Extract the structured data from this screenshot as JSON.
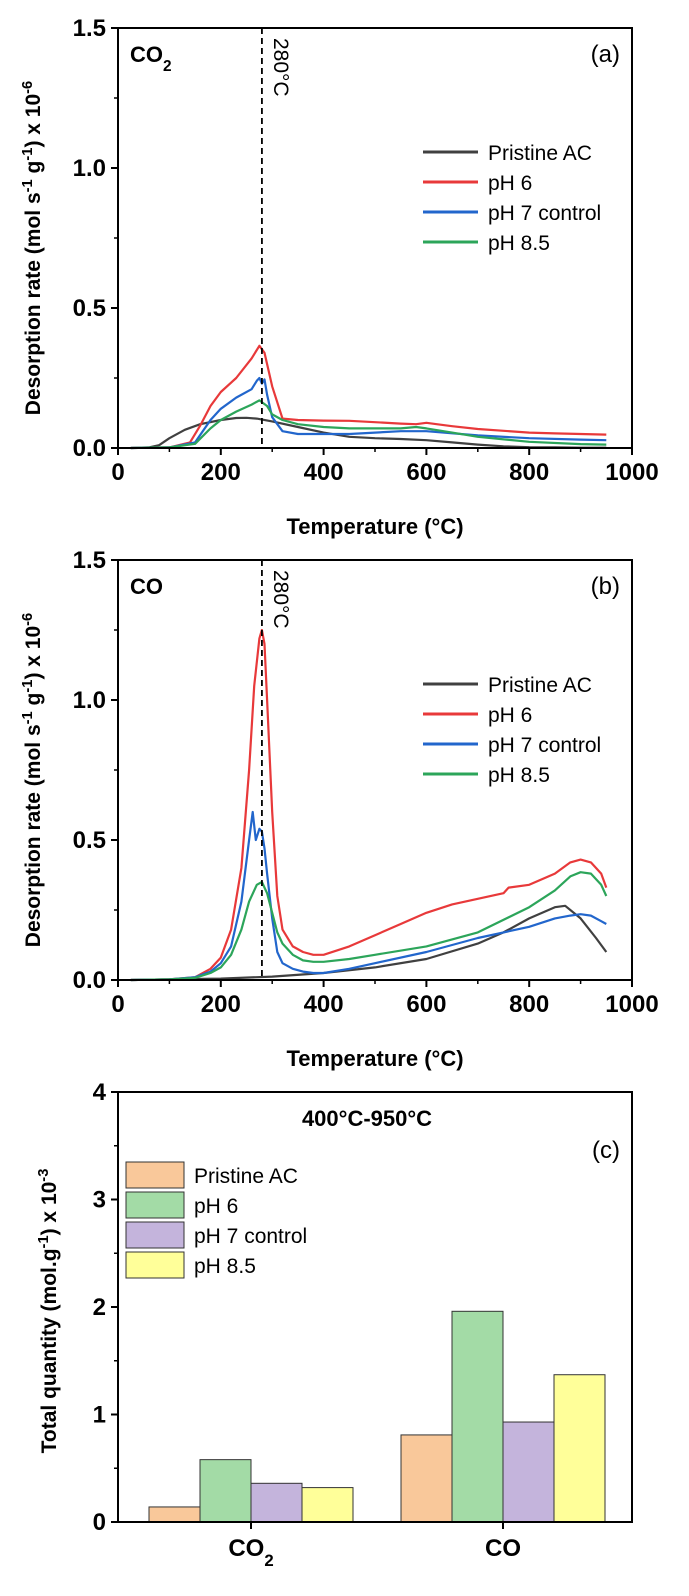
{
  "chart_data": [
    {
      "id": "a",
      "type": "line",
      "panel_label": "(a)",
      "species": "CO2",
      "ylabel": "Desorption rate (mol s-1 g-1) x 10-6",
      "xlabel": "Temperature (°C)",
      "xlim": [
        0,
        1000
      ],
      "ylim": [
        0,
        1.5
      ],
      "xticks": [
        0,
        200,
        400,
        600,
        800,
        1000
      ],
      "yticks": [
        0.0,
        0.5,
        1.0,
        1.5
      ],
      "xticklabels": [
        "0",
        "200",
        "400",
        "600",
        "800",
        "1000"
      ],
      "yticklabels": [
        "0.0",
        "0.5",
        "1.0",
        "1.5"
      ],
      "vline": {
        "x": 280,
        "label": "280°C",
        "style": "dashed"
      },
      "legend": {
        "placement": "right"
      },
      "series": [
        {
          "name": "Pristine AC",
          "color": "#404040",
          "x": [
            25,
            60,
            80,
            100,
            130,
            160,
            200,
            230,
            250,
            270,
            300,
            350,
            400,
            450,
            500,
            550,
            600,
            650,
            700,
            750,
            800,
            850,
            900,
            950
          ],
          "y": [
            0.0,
            0.002,
            0.01,
            0.035,
            0.065,
            0.085,
            0.1,
            0.107,
            0.108,
            0.105,
            0.095,
            0.075,
            0.055,
            0.04,
            0.035,
            0.032,
            0.028,
            0.02,
            0.012,
            0.006,
            0.003,
            0.002,
            0.001,
            0.001
          ]
        },
        {
          "name": "pH 6",
          "color": "#e8393a",
          "x": [
            25,
            100,
            140,
            160,
            180,
            200,
            230,
            260,
            275,
            285,
            300,
            320,
            350,
            400,
            450,
            500,
            550,
            580,
            600,
            620,
            650,
            700,
            800,
            850,
            900,
            950
          ],
          "y": [
            0.0,
            0.002,
            0.02,
            0.08,
            0.15,
            0.2,
            0.25,
            0.32,
            0.365,
            0.34,
            0.22,
            0.105,
            0.1,
            0.098,
            0.097,
            0.092,
            0.087,
            0.085,
            0.09,
            0.085,
            0.078,
            0.068,
            0.055,
            0.052,
            0.05,
            0.048
          ]
        },
        {
          "name": "pH 7 control",
          "color": "#2266cc",
          "x": [
            25,
            100,
            150,
            180,
            200,
            230,
            260,
            270,
            275,
            280,
            285,
            290,
            300,
            320,
            350,
            400,
            450,
            500,
            550,
            600,
            700,
            800,
            900,
            950
          ],
          "y": [
            0.0,
            0.002,
            0.02,
            0.1,
            0.14,
            0.18,
            0.21,
            0.24,
            0.25,
            0.23,
            0.245,
            0.19,
            0.11,
            0.06,
            0.05,
            0.05,
            0.05,
            0.055,
            0.06,
            0.06,
            0.045,
            0.035,
            0.03,
            0.028
          ]
        },
        {
          "name": "pH 8.5",
          "color": "#2ca55a",
          "x": [
            25,
            100,
            150,
            180,
            200,
            230,
            260,
            275,
            290,
            300,
            320,
            350,
            400,
            450,
            500,
            550,
            580,
            600,
            650,
            700,
            800,
            900,
            950
          ],
          "y": [
            0.0,
            0.002,
            0.015,
            0.07,
            0.1,
            0.13,
            0.155,
            0.17,
            0.15,
            0.12,
            0.1,
            0.085,
            0.075,
            0.07,
            0.07,
            0.07,
            0.075,
            0.07,
            0.055,
            0.04,
            0.022,
            0.014,
            0.012
          ]
        }
      ]
    },
    {
      "id": "b",
      "type": "line",
      "panel_label": "(b)",
      "species": "CO",
      "ylabel": "Desorption rate (mol s-1 g-1) x 10-6",
      "xlabel": "Temperature (°C)",
      "xlim": [
        0,
        1000
      ],
      "ylim": [
        0,
        1.5
      ],
      "xticks": [
        0,
        200,
        400,
        600,
        800,
        1000
      ],
      "yticks": [
        0.0,
        0.5,
        1.0,
        1.5
      ],
      "xticklabels": [
        "0",
        "200",
        "400",
        "600",
        "800",
        "1000"
      ],
      "yticklabels": [
        "0.0",
        "0.5",
        "1.0",
        "1.5"
      ],
      "vline": {
        "x": 280,
        "label": "280°C",
        "style": "dashed"
      },
      "legend": {
        "placement": "right"
      },
      "series": [
        {
          "name": "Pristine AC",
          "color": "#404040",
          "x": [
            25,
            100,
            200,
            300,
            400,
            500,
            600,
            700,
            750,
            800,
            850,
            870,
            900,
            930,
            950
          ],
          "y": [
            0.0,
            0.002,
            0.005,
            0.012,
            0.025,
            0.045,
            0.075,
            0.13,
            0.17,
            0.22,
            0.26,
            0.265,
            0.22,
            0.15,
            0.1
          ]
        },
        {
          "name": "pH 6",
          "color": "#e8393a",
          "x": [
            25,
            100,
            150,
            180,
            200,
            220,
            240,
            255,
            265,
            275,
            280,
            285,
            290,
            300,
            310,
            320,
            340,
            360,
            380,
            400,
            450,
            500,
            550,
            600,
            650,
            700,
            750,
            760,
            800,
            850,
            880,
            900,
            920,
            940,
            950
          ],
          "y": [
            0.0,
            0.002,
            0.01,
            0.04,
            0.08,
            0.18,
            0.4,
            0.75,
            1.05,
            1.22,
            1.25,
            1.2,
            1.0,
            0.6,
            0.3,
            0.18,
            0.12,
            0.1,
            0.09,
            0.09,
            0.12,
            0.16,
            0.2,
            0.24,
            0.27,
            0.29,
            0.31,
            0.33,
            0.34,
            0.38,
            0.42,
            0.43,
            0.42,
            0.38,
            0.33
          ]
        },
        {
          "name": "pH 7 control",
          "color": "#2266cc",
          "x": [
            25,
            100,
            150,
            180,
            200,
            220,
            240,
            255,
            262,
            268,
            275,
            280,
            285,
            290,
            300,
            310,
            320,
            340,
            360,
            380,
            400,
            450,
            500,
            600,
            700,
            800,
            850,
            880,
            900,
            920,
            940,
            950
          ],
          "y": [
            0.0,
            0.002,
            0.01,
            0.03,
            0.06,
            0.12,
            0.28,
            0.5,
            0.6,
            0.5,
            0.54,
            0.53,
            0.47,
            0.38,
            0.22,
            0.1,
            0.06,
            0.04,
            0.03,
            0.025,
            0.025,
            0.04,
            0.06,
            0.1,
            0.15,
            0.19,
            0.22,
            0.23,
            0.235,
            0.23,
            0.21,
            0.2
          ]
        },
        {
          "name": "pH 8.5",
          "color": "#2ca55a",
          "x": [
            25,
            100,
            150,
            180,
            200,
            220,
            240,
            255,
            270,
            280,
            290,
            300,
            310,
            320,
            340,
            360,
            380,
            400,
            450,
            500,
            600,
            700,
            800,
            850,
            880,
            900,
            920,
            940,
            950
          ],
          "y": [
            0.0,
            0.002,
            0.008,
            0.025,
            0.045,
            0.09,
            0.18,
            0.28,
            0.34,
            0.35,
            0.31,
            0.24,
            0.17,
            0.13,
            0.09,
            0.07,
            0.065,
            0.065,
            0.075,
            0.09,
            0.12,
            0.17,
            0.26,
            0.32,
            0.37,
            0.385,
            0.38,
            0.34,
            0.3
          ]
        }
      ]
    },
    {
      "id": "c",
      "type": "bar",
      "panel_label": "(c)",
      "title": "400°C-950°C",
      "ylabel": "Total quantity (mol.g-1) x 10-3",
      "categories": [
        "CO2",
        "CO"
      ],
      "ylim": [
        0,
        4
      ],
      "yticks": [
        0,
        1,
        2,
        3,
        4
      ],
      "yticklabels": [
        "0",
        "1",
        "2",
        "3",
        "4"
      ],
      "legend": {
        "placement": "top-left"
      },
      "series": [
        {
          "name": "Pristine AC",
          "color": "#f9c89a",
          "values": [
            0.14,
            0.81
          ]
        },
        {
          "name": "pH 6",
          "color": "#a3dba6",
          "values": [
            0.58,
            1.96
          ]
        },
        {
          "name": "pH 7 control",
          "color": "#c4b4dc",
          "values": [
            0.36,
            0.93
          ]
        },
        {
          "name": "pH 8.5",
          "color": "#ffff99",
          "values": [
            0.32,
            1.37
          ]
        }
      ]
    }
  ]
}
